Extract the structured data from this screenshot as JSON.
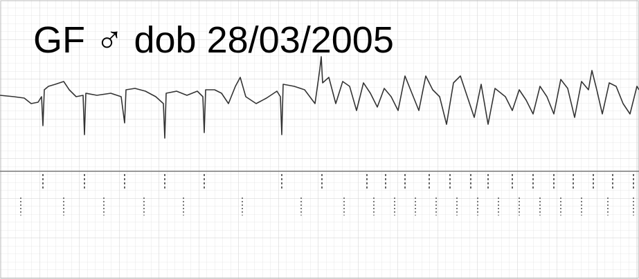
{
  "title": "GF ♂ dob 28/03/2005"
}
